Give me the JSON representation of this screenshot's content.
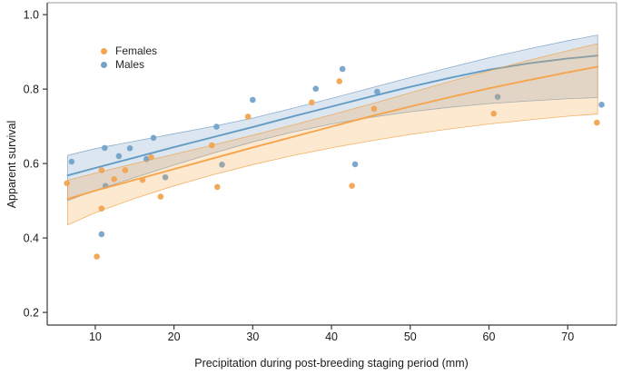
{
  "chart_data": {
    "type": "scatter",
    "title": "",
    "xlabel": "Precipitation during post-breeding staging period (mm)",
    "ylabel": "Apparent survival",
    "xlim": [
      3.9,
      76.2
    ],
    "ylim": [
      0.166,
      1.032
    ],
    "x_ticks": [
      10,
      20,
      30,
      40,
      50,
      60,
      70
    ],
    "x_tick_labels": [
      "10",
      "20",
      "30",
      "40",
      "50",
      "60",
      "70"
    ],
    "y_ticks": [
      0.2,
      0.4,
      0.6,
      0.8,
      1.0
    ],
    "y_tick_labels": [
      "0.2",
      "0.4",
      "0.6",
      "0.8",
      "1.0"
    ],
    "grid": false,
    "legend_position": "upper-left-inside",
    "axis_color": "#3a3a3a",
    "box_color": "#9a9a9a",
    "fit_x": [
      6.5,
      10,
      15,
      20,
      25,
      30,
      35,
      40,
      45,
      50,
      55,
      60,
      65,
      70,
      73.8
    ],
    "series": [
      {
        "name": "Females",
        "dot_color": "#F2A452",
        "line_color": "#F5A44C",
        "band_fill": "rgba(246,166,72,0.26)",
        "band_edge": "rgba(240,158,62,0.75)",
        "points": [
          [
            6.4,
            0.547
          ],
          [
            10.2,
            0.35
          ],
          [
            10.8,
            0.479
          ],
          [
            10.8,
            0.582
          ],
          [
            12.4,
            0.558
          ],
          [
            13.8,
            0.582
          ],
          [
            16.0,
            0.556
          ],
          [
            17.1,
            0.617
          ],
          [
            18.3,
            0.511
          ],
          [
            24.8,
            0.649
          ],
          [
            25.5,
            0.537
          ],
          [
            29.4,
            0.726
          ],
          [
            37.5,
            0.764
          ],
          [
            41.0,
            0.821
          ],
          [
            42.6,
            0.54
          ],
          [
            45.4,
            0.747
          ],
          [
            60.6,
            0.734
          ],
          [
            73.7,
            0.71
          ]
        ],
        "fit_y": [
          0.505,
          0.527,
          0.556,
          0.585,
          0.614,
          0.643,
          0.671,
          0.699,
          0.727,
          0.753,
          0.778,
          0.802,
          0.824,
          0.845,
          0.86
        ],
        "ci_upper": [
          0.555,
          0.574,
          0.6,
          0.625,
          0.65,
          0.676,
          0.703,
          0.731,
          0.76,
          0.79,
          0.82,
          0.849,
          0.877,
          0.903,
          0.922
        ],
        "ci_lower": [
          0.435,
          0.468,
          0.506,
          0.54,
          0.57,
          0.597,
          0.621,
          0.642,
          0.661,
          0.678,
          0.693,
          0.706,
          0.717,
          0.727,
          0.733
        ]
      },
      {
        "name": "Males",
        "dot_color": "#74A3C9",
        "line_color": "#649CC4",
        "band_fill": "rgba(114,158,199,0.26)",
        "band_edge": "rgba(108,152,192,0.75)",
        "points": [
          [
            7.0,
            0.605
          ],
          [
            10.8,
            0.41
          ],
          [
            11.2,
            0.642
          ],
          [
            11.3,
            0.54
          ],
          [
            13.0,
            0.62
          ],
          [
            14.4,
            0.641
          ],
          [
            16.5,
            0.612
          ],
          [
            17.4,
            0.669
          ],
          [
            18.9,
            0.563
          ],
          [
            25.4,
            0.699
          ],
          [
            26.1,
            0.597
          ],
          [
            30.0,
            0.771
          ],
          [
            38.0,
            0.801
          ],
          [
            41.4,
            0.854
          ],
          [
            43.0,
            0.598
          ],
          [
            45.8,
            0.793
          ],
          [
            61.1,
            0.779
          ],
          [
            74.3,
            0.758
          ]
        ],
        "fit_y": [
          0.568,
          0.588,
          0.616,
          0.644,
          0.671,
          0.698,
          0.726,
          0.753,
          0.78,
          0.806,
          0.83,
          0.852,
          0.869,
          0.882,
          0.89
        ],
        "ci_upper": [
          0.622,
          0.64,
          0.66,
          0.68,
          0.7,
          0.722,
          0.748,
          0.775,
          0.803,
          0.831,
          0.858,
          0.884,
          0.908,
          0.93,
          0.945
        ],
        "ci_lower": [
          0.5,
          0.528,
          0.562,
          0.596,
          0.628,
          0.658,
          0.684,
          0.706,
          0.724,
          0.739,
          0.751,
          0.761,
          0.768,
          0.774,
          0.777
        ]
      }
    ]
  }
}
